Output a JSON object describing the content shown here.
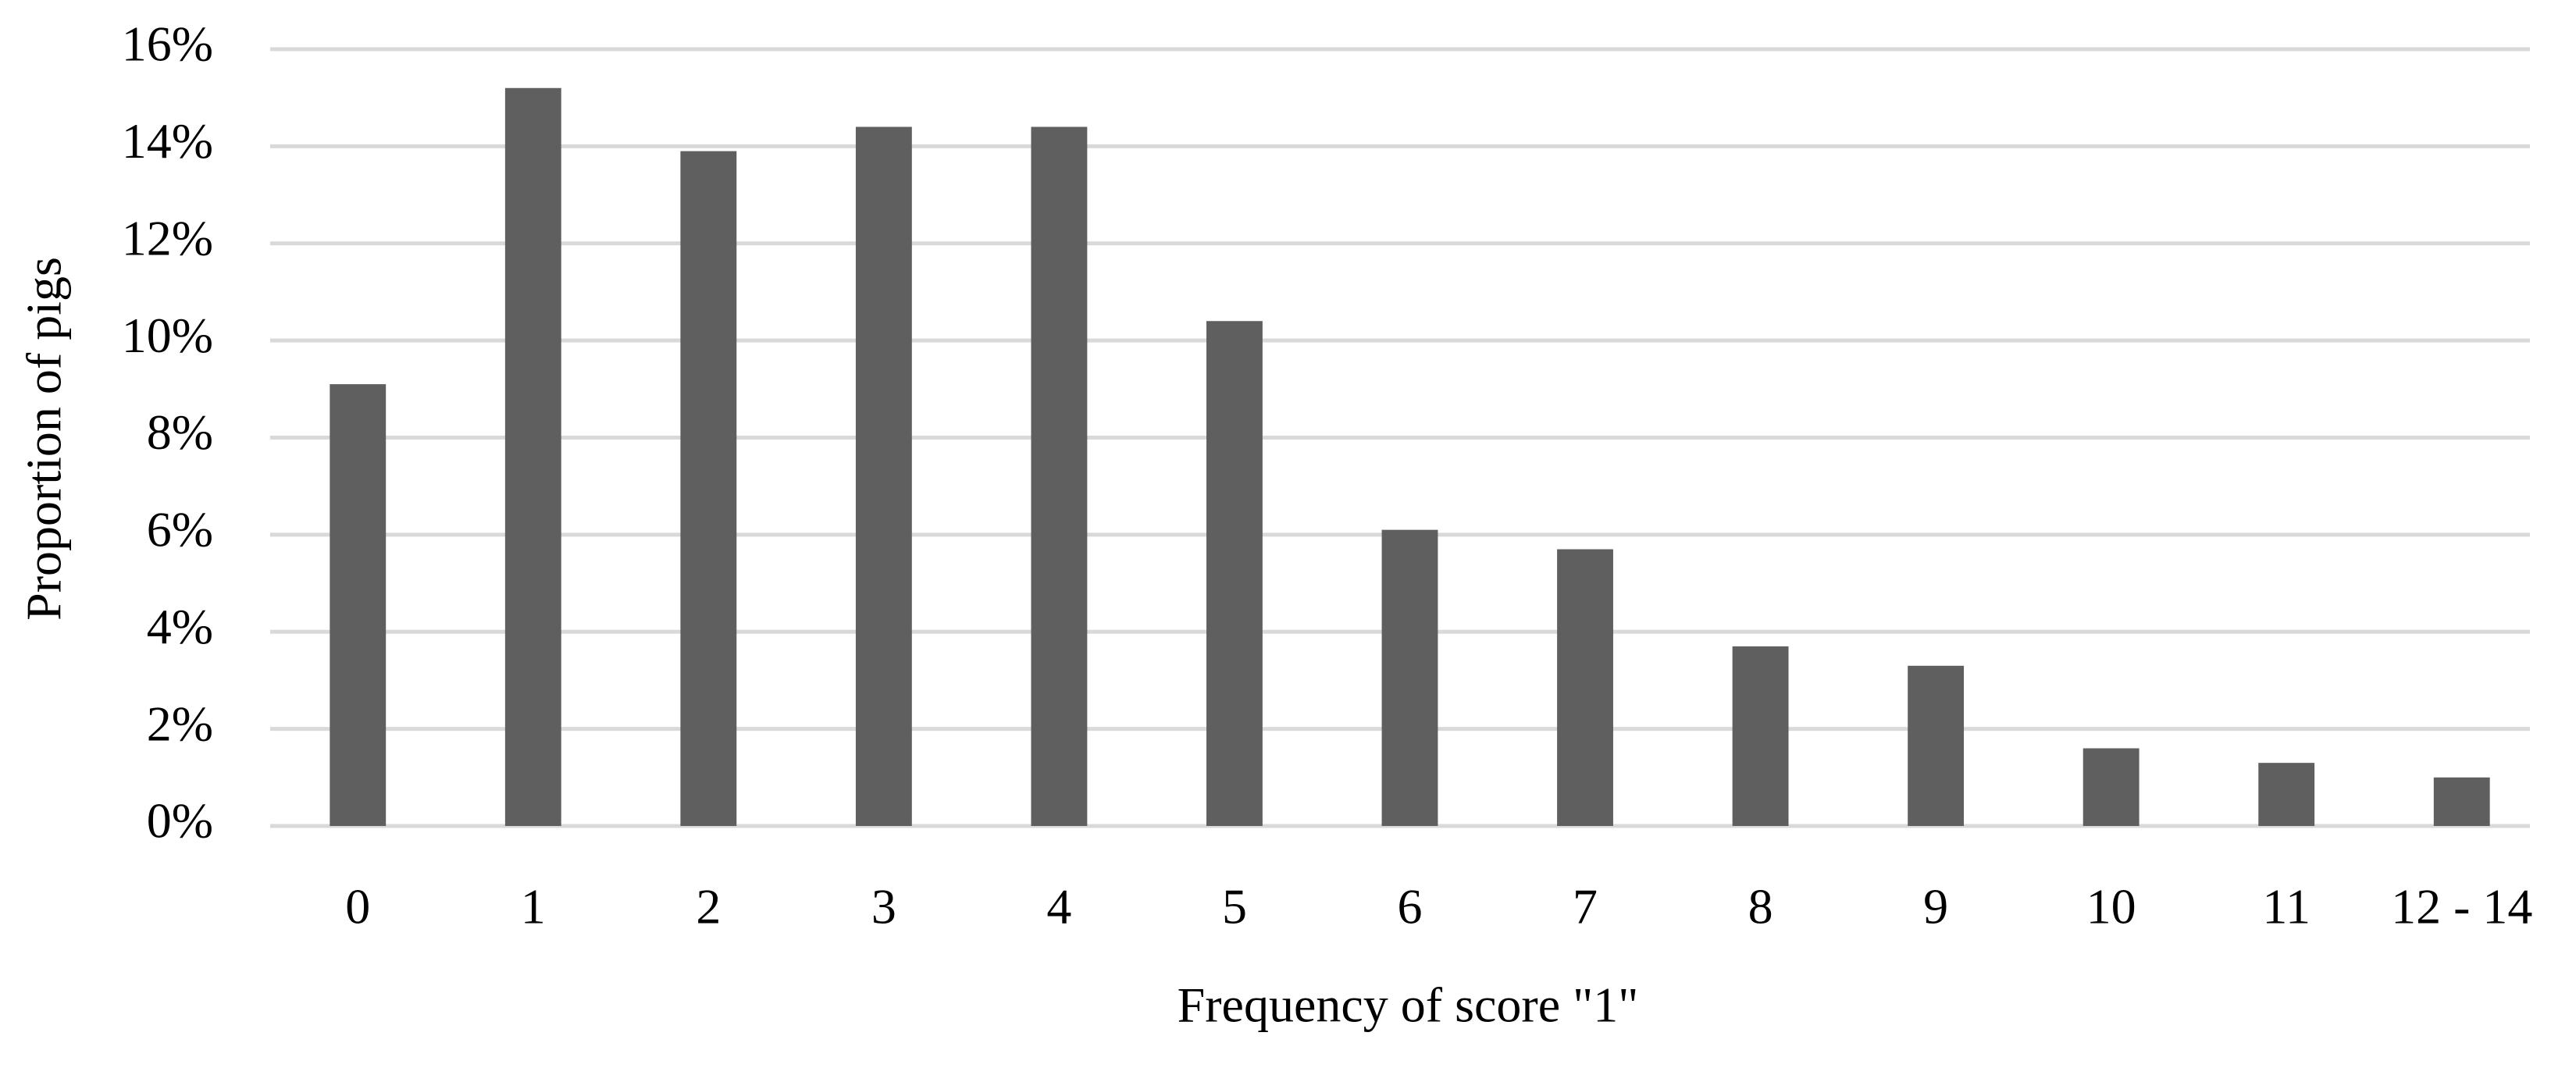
{
  "chart_data": {
    "type": "bar",
    "xlabel": "Frequency of score \"1\"",
    "ylabel": "Proportion of pigs",
    "categories": [
      "0",
      "1",
      "2",
      "3",
      "4",
      "5",
      "6",
      "7",
      "8",
      "9",
      "10",
      "11",
      "12 - 14"
    ],
    "values": [
      9.1,
      15.2,
      13.9,
      14.4,
      14.4,
      10.4,
      6.1,
      5.7,
      3.7,
      3.3,
      1.6,
      1.3,
      1.0
    ],
    "color": "#5f5f5f",
    "ylim": [
      0,
      16
    ],
    "yticks": [
      {
        "value": 0,
        "label": "0%"
      },
      {
        "value": 2,
        "label": "2%"
      },
      {
        "value": 4,
        "label": "4%"
      },
      {
        "value": 6,
        "label": "6%"
      },
      {
        "value": 8,
        "label": "8%"
      },
      {
        "value": 10,
        "label": "10%"
      },
      {
        "value": 12,
        "label": "12%"
      },
      {
        "value": 14,
        "label": "14%"
      },
      {
        "value": 16,
        "label": "16%"
      }
    ],
    "grid": true
  }
}
